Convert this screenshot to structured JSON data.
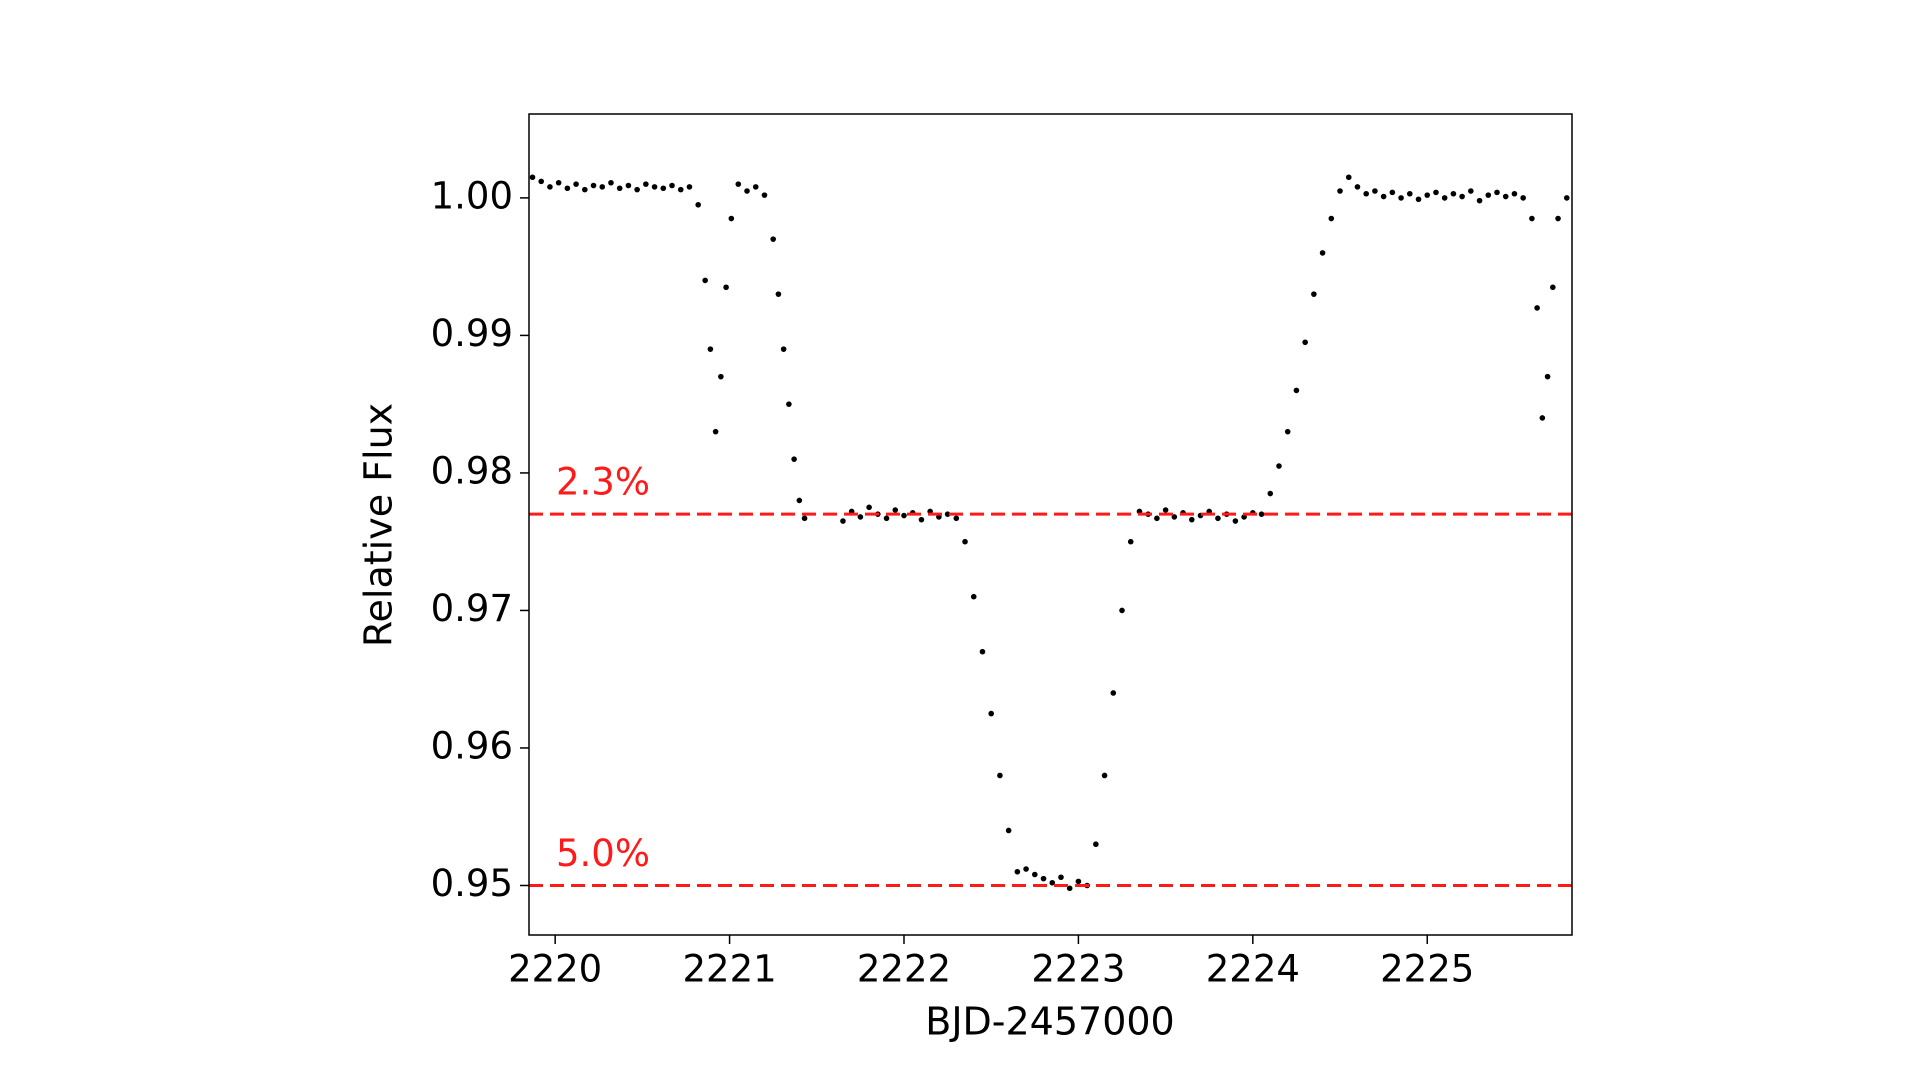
{
  "chart_data": {
    "type": "scatter",
    "xlabel": "BJD-2457000",
    "ylabel": "Relative Flux",
    "x": [
      2219.87,
      2219.92,
      2219.97,
      2220.02,
      2220.07,
      2220.12,
      2220.17,
      2220.22,
      2220.27,
      2220.32,
      2220.37,
      2220.42,
      2220.47,
      2220.52,
      2220.57,
      2220.62,
      2220.67,
      2220.72,
      2220.77,
      2220.82,
      2220.86,
      2220.89,
      2220.92,
      2220.95,
      2220.98,
      2221.01,
      2221.05,
      2221.1,
      2221.15,
      2221.2,
      2221.25,
      2221.28,
      2221.31,
      2221.34,
      2221.37,
      2221.4,
      2221.43,
      2221.65,
      2221.7,
      2221.75,
      2221.8,
      2221.85,
      2221.9,
      2221.95,
      2222.0,
      2222.05,
      2222.1,
      2222.15,
      2222.2,
      2222.25,
      2222.3,
      2222.35,
      2222.4,
      2222.45,
      2222.5,
      2222.55,
      2222.6,
      2222.65,
      2222.7,
      2222.75,
      2222.8,
      2222.85,
      2222.9,
      2222.95,
      2223.0,
      2223.05,
      2223.1,
      2223.15,
      2223.2,
      2223.25,
      2223.3,
      2223.35,
      2223.4,
      2223.45,
      2223.5,
      2223.55,
      2223.6,
      2223.65,
      2223.7,
      2223.75,
      2223.8,
      2223.85,
      2223.9,
      2223.95,
      2224.0,
      2224.05,
      2224.1,
      2224.15,
      2224.2,
      2224.25,
      2224.3,
      2224.35,
      2224.4,
      2224.45,
      2224.5,
      2224.55,
      2224.6,
      2224.65,
      2224.7,
      2224.75,
      2224.8,
      2224.85,
      2224.9,
      2224.95,
      2225.0,
      2225.05,
      2225.1,
      2225.15,
      2225.2,
      2225.25,
      2225.3,
      2225.35,
      2225.4,
      2225.45,
      2225.5,
      2225.55,
      2225.6,
      2225.63,
      2225.66,
      2225.69,
      2225.72,
      2225.75,
      2225.8
    ],
    "values": [
      1.0015,
      1.0012,
      1.0008,
      1.0011,
      1.0007,
      1.001,
      1.0006,
      1.0009,
      1.0008,
      1.0011,
      1.0007,
      1.0009,
      1.0006,
      1.001,
      1.0008,
      1.0007,
      1.0009,
      1.0006,
      1.0008,
      0.9995,
      0.994,
      0.989,
      0.983,
      0.987,
      0.9935,
      0.9985,
      1.001,
      1.0005,
      1.0008,
      1.0002,
      0.997,
      0.993,
      0.989,
      0.985,
      0.981,
      0.978,
      0.9767,
      0.9765,
      0.9772,
      0.9768,
      0.9775,
      0.977,
      0.9767,
      0.9773,
      0.9769,
      0.9771,
      0.9766,
      0.9772,
      0.9768,
      0.977,
      0.9767,
      0.975,
      0.971,
      0.967,
      0.9625,
      0.958,
      0.954,
      0.951,
      0.9512,
      0.9508,
      0.9505,
      0.9502,
      0.9506,
      0.9498,
      0.9503,
      0.95,
      0.953,
      0.958,
      0.964,
      0.97,
      0.975,
      0.9772,
      0.977,
      0.9767,
      0.9773,
      0.9768,
      0.9771,
      0.9766,
      0.9769,
      0.9772,
      0.9767,
      0.977,
      0.9765,
      0.9768,
      0.9771,
      0.977,
      0.9785,
      0.9805,
      0.983,
      0.986,
      0.9895,
      0.993,
      0.996,
      0.9985,
      1.0005,
      1.0015,
      1.0008,
      1.0003,
      1.0005,
      1.0001,
      1.0004,
      1.0,
      1.0003,
      0.9999,
      1.0002,
      1.0004,
      1.0,
      1.0003,
      1.0001,
      1.0005,
      0.9998,
      1.0002,
      1.0004,
      1.0001,
      1.0003,
      1.0,
      0.9985,
      0.992,
      0.984,
      0.987,
      0.9935,
      0.9985,
      1.0
    ],
    "color": "#000000",
    "xlim": [
      2219.85,
      2225.83
    ],
    "xticks": [
      2220,
      2221,
      2222,
      2223,
      2224,
      2225
    ],
    "ylim": [
      0.9464,
      1.0061
    ],
    "yticks": [
      {
        "value": 0.95,
        "label": "0.95"
      },
      {
        "value": 0.96,
        "label": "0.96"
      },
      {
        "value": 0.97,
        "label": "0.97"
      },
      {
        "value": 0.98,
        "label": "0.98"
      },
      {
        "value": 0.99,
        "label": "0.99"
      },
      {
        "value": 1.0,
        "label": "1.00"
      }
    ],
    "hlines": [
      {
        "y": 0.977,
        "label": "2.3%",
        "color": "#ff1a1a"
      },
      {
        "y": 0.95,
        "label": "5.0%",
        "color": "#ff1a1a"
      }
    ]
  }
}
